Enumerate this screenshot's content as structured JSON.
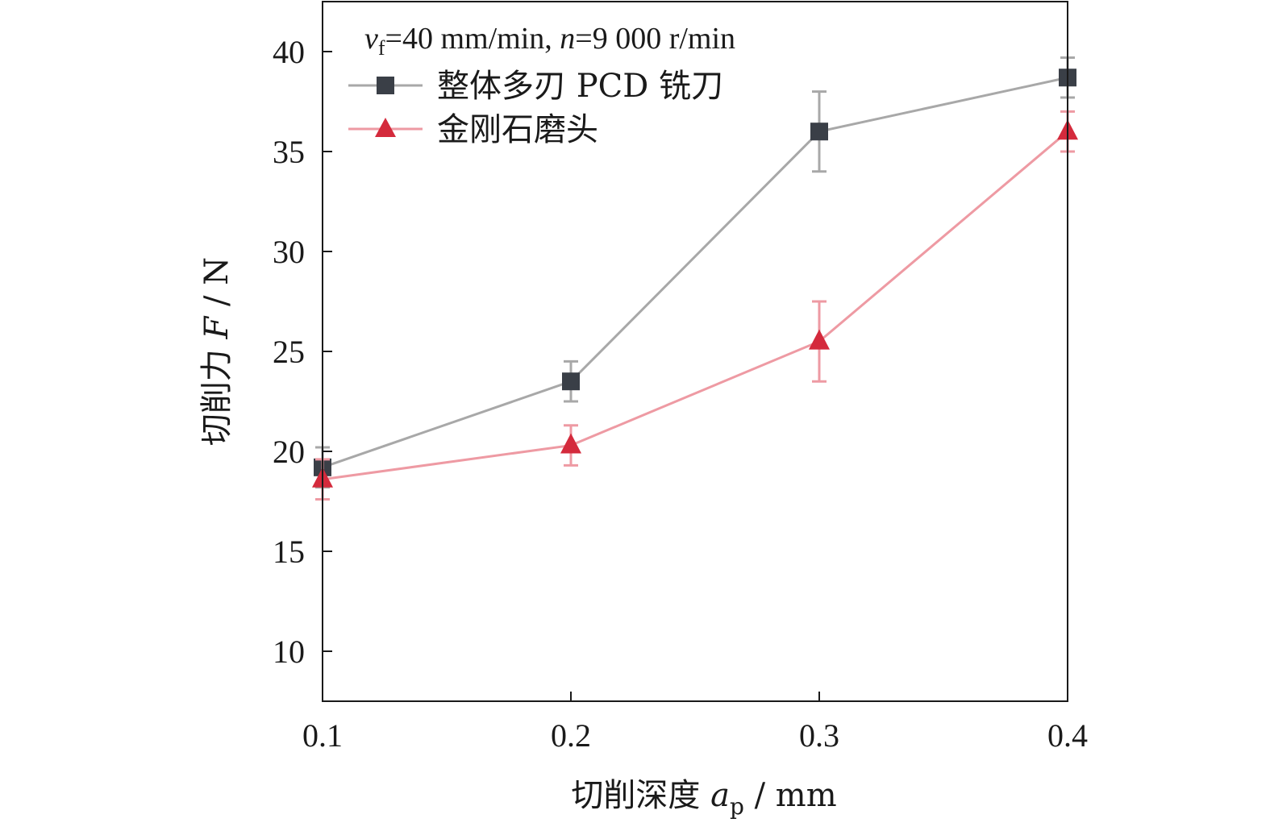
{
  "chart_data": {
    "type": "line",
    "condition": {
      "vf_symbol": "v",
      "vf_subscript": "f",
      "vf_value": "=40 mm/min, ",
      "n_symbol": "n",
      "n_value": "=9 000 r/min"
    },
    "xlabel": {
      "prefix": "切削深度 ",
      "symbol": "a",
      "subscript": "p",
      "unit": " / mm"
    },
    "ylabel": {
      "prefix": "切削力 ",
      "symbol": "F",
      "unit": " / N"
    },
    "x_ticks": [
      "0.1",
      "0.2",
      "0.3",
      "0.4"
    ],
    "y_ticks": [
      "10",
      "15",
      "20",
      "25",
      "30",
      "35",
      "40"
    ],
    "xlim": [
      0.1,
      0.4
    ],
    "ylim": [
      7.5,
      42.5
    ],
    "x": [
      0.1,
      0.2,
      0.3,
      0.4
    ],
    "series": [
      {
        "name": "整体多刃 PCD 铣刀",
        "marker": "square",
        "color": "#3a3f47",
        "line_color": "#a8a8a8",
        "values": [
          19.2,
          23.5,
          36.0,
          38.7
        ],
        "errors": [
          1.0,
          1.0,
          2.0,
          1.0
        ]
      },
      {
        "name": "金刚石磨头",
        "marker": "triangle",
        "color": "#d42a3c",
        "line_color": "#ee9aa3",
        "values": [
          18.6,
          20.3,
          25.5,
          36.0
        ],
        "errors": [
          1.0,
          1.0,
          2.0,
          1.0
        ]
      }
    ]
  }
}
